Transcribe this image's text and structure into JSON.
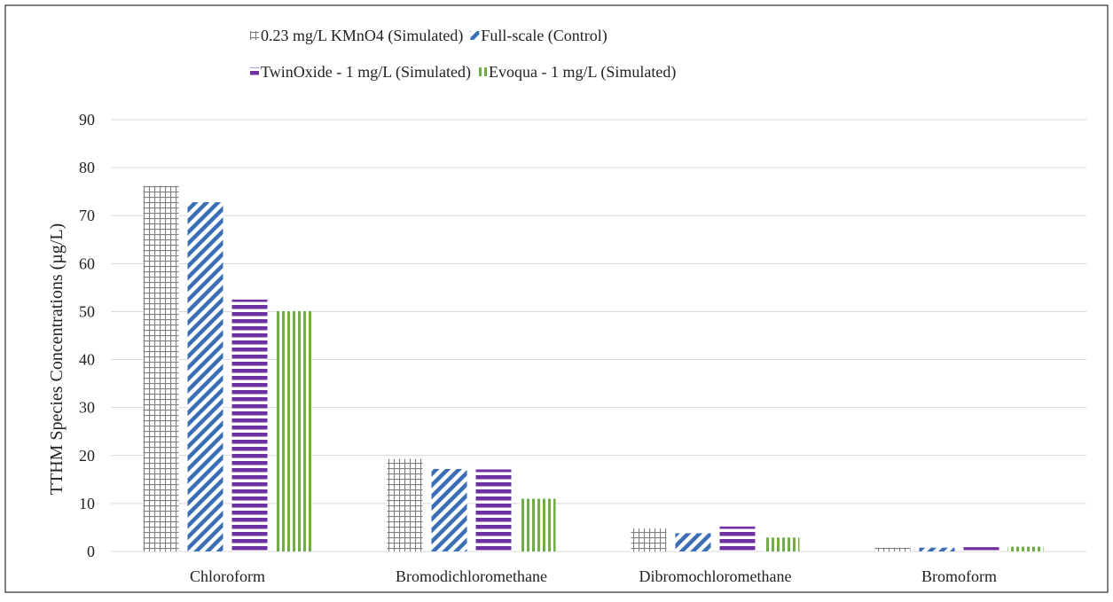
{
  "chart_data": {
    "type": "bar",
    "title": "",
    "xlabel": "",
    "ylabel": "TTHM Species Concentrations (µg/L)",
    "ylim": [
      0,
      90
    ],
    "yticks": [
      0,
      10,
      20,
      30,
      40,
      50,
      60,
      70,
      80,
      90
    ],
    "grid": true,
    "legend_position": "top",
    "categories": [
      "Chloroform",
      "Bromodichloromethane",
      "Dibromochloromethane",
      "Bromoform"
    ],
    "series": [
      {
        "name": "0.23 mg/L KMnO4 (Simulated)",
        "values": [
          76.2,
          19.3,
          4.8,
          0.8
        ],
        "color": "#7f7f7f",
        "pattern": "grid"
      },
      {
        "name": "Full-scale (Control)",
        "values": [
          72.8,
          17.2,
          3.8,
          0.8
        ],
        "color": "#3b6fb5",
        "pattern": "diagonal"
      },
      {
        "name": "TwinOxide - 1 mg/L (Simulated)",
        "values": [
          52.5,
          17.1,
          5.2,
          0.9
        ],
        "color": "#7030a0",
        "pattern": "horizontal"
      },
      {
        "name": "Evoqua - 1 mg/L (Simulated)",
        "values": [
          50.1,
          11.0,
          2.9,
          1.0
        ],
        "color": "#70ad47",
        "pattern": "vertical"
      }
    ]
  }
}
